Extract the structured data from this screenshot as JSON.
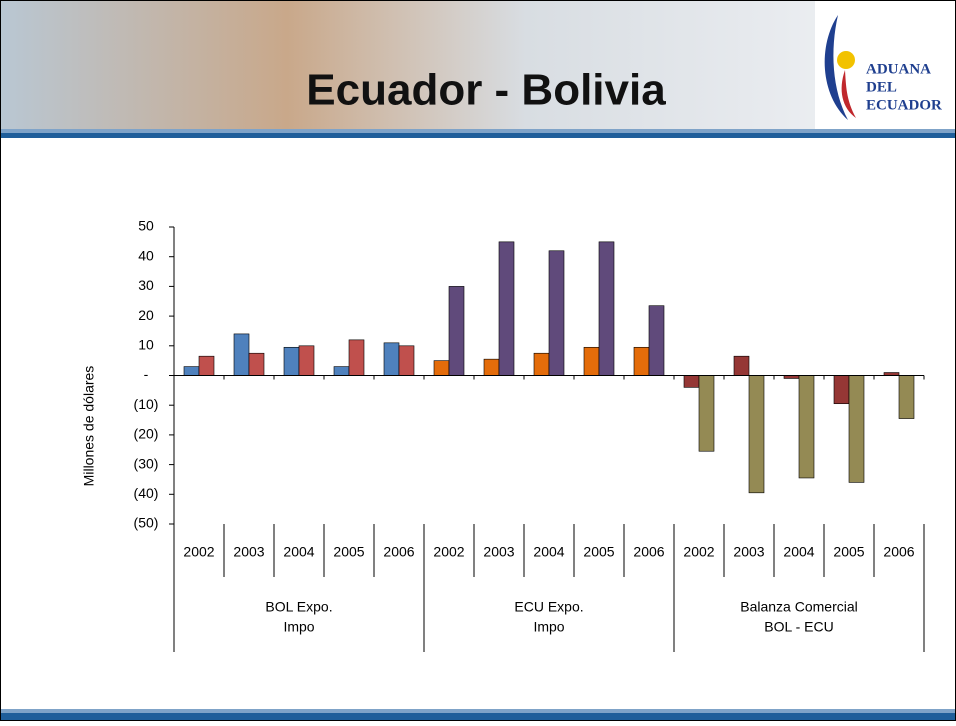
{
  "header": {
    "title": "Ecuador - Bolivia",
    "logo": [
      "ADUANA",
      "DEL",
      "ECUADOR"
    ]
  },
  "chart_data": {
    "type": "bar",
    "y_label": "Millones de dólares",
    "ylim": [
      -50,
      50
    ],
    "yticks": [
      {
        "value": -50,
        "label": "(50)"
      },
      {
        "value": -40,
        "label": "(40)"
      },
      {
        "value": -30,
        "label": "(30)"
      },
      {
        "value": -20,
        "label": "(20)"
      },
      {
        "value": -10,
        "label": "(10)"
      },
      {
        "value": 0,
        "label": "-"
      },
      10,
      20,
      30,
      40,
      50
    ],
    "groups": [
      {
        "label_lines": [
          "BOL Expo.",
          "Impo"
        ],
        "categories": [
          "2002",
          "2003",
          "2004",
          "2005",
          "2006"
        ],
        "series": [
          {
            "color": "#4f81bd",
            "values": [
              3,
              14,
              9.5,
              3,
              11
            ]
          },
          {
            "color": "#c0504d",
            "values": [
              6.5,
              7.5,
              10,
              12,
              10
            ]
          }
        ]
      },
      {
        "label_lines": [
          "ECU Expo.",
          "Impo"
        ],
        "categories": [
          "2002",
          "2003",
          "2004",
          "2005",
          "2006"
        ],
        "series": [
          {
            "color": "#e46c0a",
            "values": [
              5,
              5.5,
              7.5,
              9.5,
              9.5
            ]
          },
          {
            "color": "#604a7b",
            "values": [
              30,
              45,
              42,
              45,
              23.5
            ]
          }
        ]
      },
      {
        "label_lines": [
          "Balanza Comercial",
          "BOL - ECU"
        ],
        "categories": [
          "2002",
          "2003",
          "2004",
          "2005",
          "2006"
        ],
        "series": [
          {
            "color": "#953735",
            "values": [
              -4,
              6.5,
              -1,
              -9.5,
              1
            ]
          },
          {
            "color": "#948a54",
            "values": [
              -25.5,
              -39.5,
              -34.5,
              -36,
              -14.5
            ]
          }
        ]
      }
    ]
  }
}
